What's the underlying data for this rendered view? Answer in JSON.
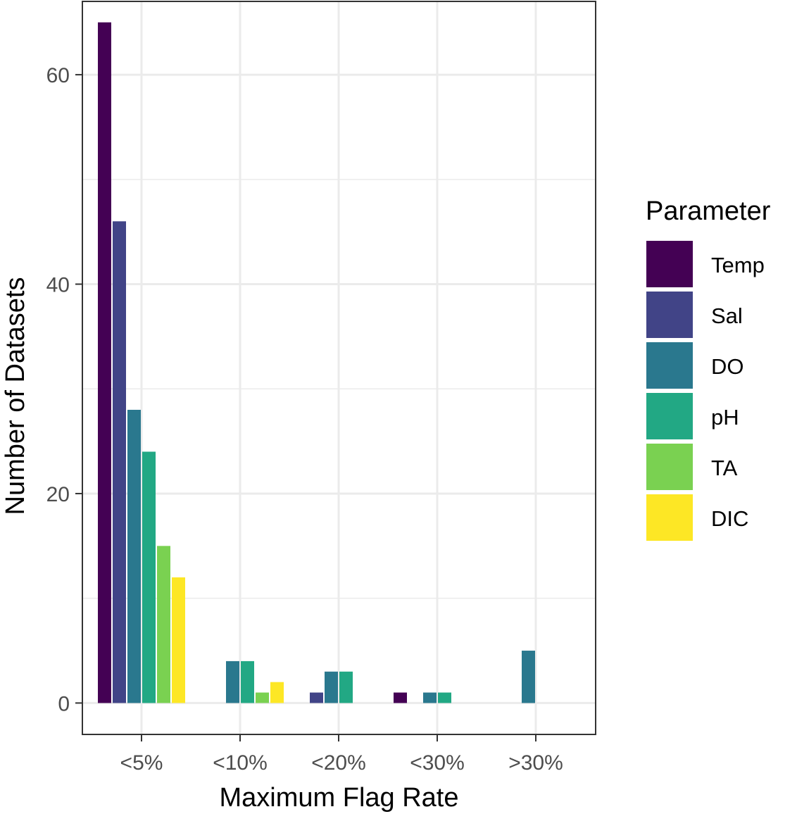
{
  "chart_data": {
    "type": "bar",
    "xlabel": "Maximum Flag Rate",
    "ylabel": "Number of Datasets",
    "categories": [
      "<5%",
      "<10%",
      "<20%",
      "<30%",
      ">30%"
    ],
    "ylim": [
      -3,
      67
    ],
    "yticks": [
      0,
      20,
      40,
      60
    ],
    "grid": true,
    "legend": {
      "title": "Parameter",
      "position": "right"
    },
    "series": [
      {
        "name": "Temp",
        "color": "#440154",
        "values": [
          65,
          0,
          0,
          1,
          0
        ]
      },
      {
        "name": "Sal",
        "color": "#414487",
        "values": [
          46,
          0,
          1,
          0,
          0
        ]
      },
      {
        "name": "DO",
        "color": "#2A788E",
        "values": [
          28,
          4,
          3,
          1,
          5
        ]
      },
      {
        "name": "pH",
        "color": "#22A884",
        "values": [
          24,
          4,
          3,
          1,
          0
        ]
      },
      {
        "name": "TA",
        "color": "#7AD151",
        "values": [
          15,
          1,
          0,
          0,
          0
        ]
      },
      {
        "name": "DIC",
        "color": "#FDE725",
        "values": [
          12,
          2,
          0,
          0,
          0
        ]
      }
    ]
  }
}
